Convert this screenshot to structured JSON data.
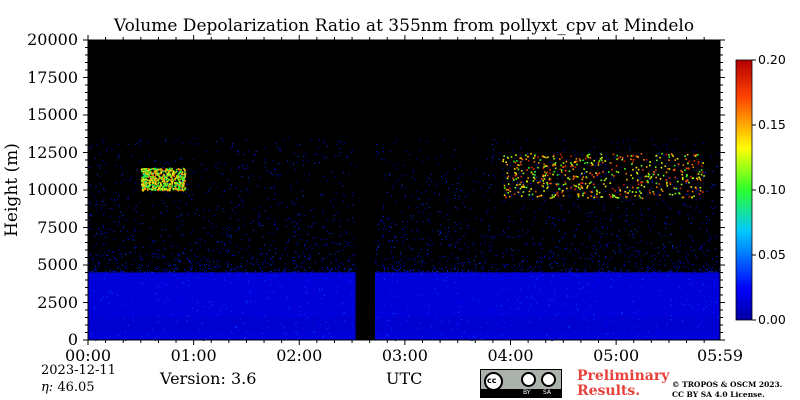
{
  "chart_data": {
    "type": "heatmap",
    "title": "Volume Depolarization Ratio at 355nm from pollyxt_cpv at Mindelo",
    "xlabel": "UTC",
    "ylabel": "Height (m)",
    "x_range": [
      "00:00",
      "05:59"
    ],
    "x_ticks": [
      "00:00",
      "01:00",
      "02:00",
      "03:00",
      "04:00",
      "05:00",
      "05:59"
    ],
    "ylim": [
      0,
      20000
    ],
    "y_ticks": [
      "0",
      "2500",
      "5000",
      "7500",
      "10000",
      "12500",
      "15000",
      "17500",
      "20000"
    ],
    "colorbar": {
      "min": 0.0,
      "max": 0.2,
      "ticks": [
        "0.00",
        "0.05",
        "0.10",
        "0.15",
        "0.20"
      ],
      "colormap": "jet"
    },
    "background_color": "#000000",
    "data_gaps": [
      {
        "start": "02:32",
        "end": "02:43"
      }
    ],
    "layers": [
      {
        "type": "boundary-layer",
        "height_min": 0,
        "height_max": 4500,
        "depol": 0.02
      },
      {
        "type": "cirrus",
        "start": "00:30",
        "end": "00:55",
        "height_min": 10000,
        "height_max": 11500,
        "depol": 0.14
      },
      {
        "type": "cirrus",
        "start": "03:55",
        "end": "05:50",
        "height_min": 9500,
        "height_max": 12500,
        "depol": 0.16
      }
    ]
  },
  "footer": {
    "date": "2023-12-11",
    "eta_label": "η:",
    "eta_value": "46.05",
    "version": "Version: 3.6",
    "license_badge": {
      "top": "cc",
      "bottom_left": "BY",
      "bottom_right": "SA"
    },
    "preliminary_line1": "Preliminary",
    "preliminary_line2": "Results.",
    "copyright_line1": "© TROPOS & OSCM 2023.",
    "copyright_line2": "CC BY SA 4.0 License."
  }
}
